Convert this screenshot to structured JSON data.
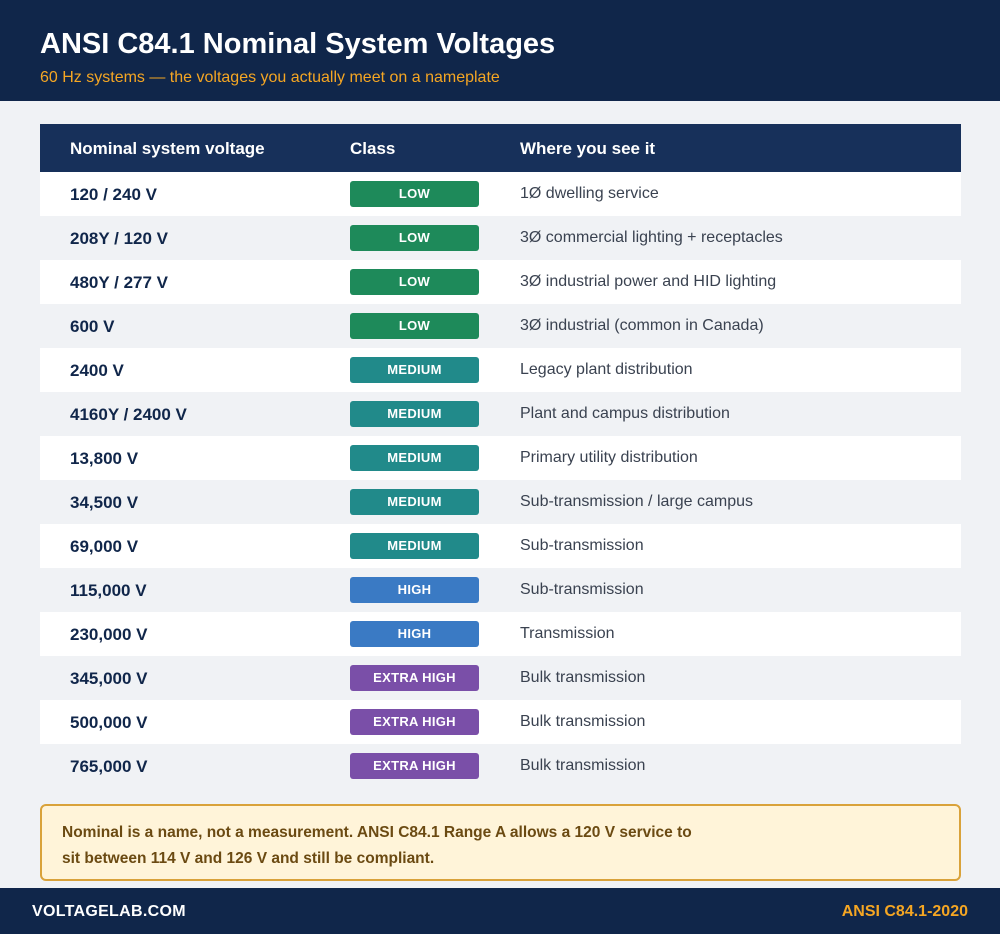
{
  "header": {
    "title": "ANSI C84.1 Nominal System Voltages",
    "subtitle": "60 Hz systems — the voltages you actually meet on a nameplate"
  },
  "table": {
    "columns": [
      "Nominal system voltage",
      "Class",
      "Where you see it"
    ],
    "rows": [
      {
        "voltage": "120 / 240 V",
        "class": "LOW",
        "where": "1Ø dwelling service"
      },
      {
        "voltage": "208Y / 120 V",
        "class": "LOW",
        "where": "3Ø commercial lighting + receptacles"
      },
      {
        "voltage": "480Y / 277 V",
        "class": "LOW",
        "where": "3Ø industrial power and HID lighting"
      },
      {
        "voltage": "600 V",
        "class": "LOW",
        "where": "3Ø industrial (common in Canada)"
      },
      {
        "voltage": "2400 V",
        "class": "MEDIUM",
        "where": "Legacy plant distribution"
      },
      {
        "voltage": "4160Y / 2400 V",
        "class": "MEDIUM",
        "where": "Plant and campus distribution"
      },
      {
        "voltage": "13,800 V",
        "class": "MEDIUM",
        "where": "Primary utility distribution"
      },
      {
        "voltage": "34,500 V",
        "class": "MEDIUM",
        "where": "Sub-transmission / large campus"
      },
      {
        "voltage": "69,000 V",
        "class": "MEDIUM",
        "where": "Sub-transmission"
      },
      {
        "voltage": "115,000 V",
        "class": "HIGH",
        "where": "Sub-transmission"
      },
      {
        "voltage": "230,000 V",
        "class": "HIGH",
        "where": "Transmission"
      },
      {
        "voltage": "345,000 V",
        "class": "EXTRA HIGH",
        "where": "Bulk transmission"
      },
      {
        "voltage": "500,000 V",
        "class": "EXTRA HIGH",
        "where": "Bulk transmission"
      },
      {
        "voltage": "765,000 V",
        "class": "EXTRA HIGH",
        "where": "Bulk transmission"
      }
    ]
  },
  "class_colors": {
    "LOW": "#1e8a5a",
    "MEDIUM": "#218a8a",
    "HIGH": "#3a7ac4",
    "EXTRA HIGH": "#7a4fa8"
  },
  "note": {
    "text": "Nominal is a name, not a measurement. ANSI C84.1 Range A allows a 120 V service to sit between 114 V and 126 V and still be compliant."
  },
  "footer": {
    "brand": "VOLTAGELAB.COM",
    "standard": "ANSI C84.1-2020"
  }
}
